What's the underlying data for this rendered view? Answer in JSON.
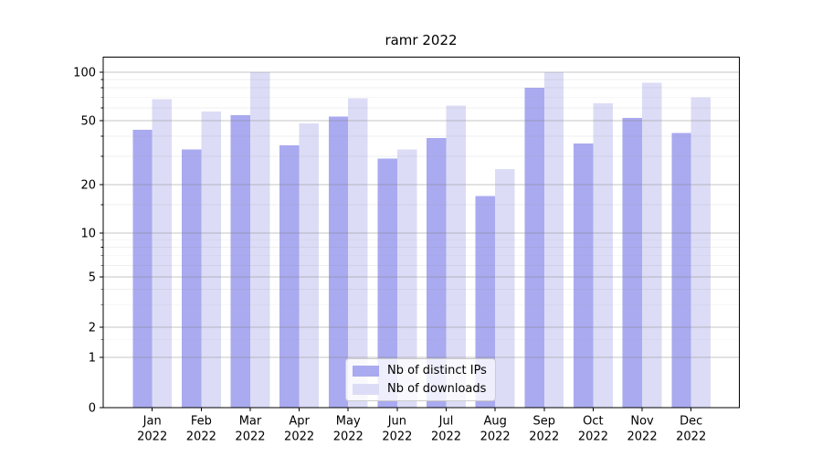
{
  "chart_data": {
    "type": "bar",
    "title": "ramr 2022",
    "categories": [
      "Jan",
      "Feb",
      "Mar",
      "Apr",
      "May",
      "Jun",
      "Jul",
      "Aug",
      "Sep",
      "Oct",
      "Nov",
      "Dec"
    ],
    "x_tick_year": "2022",
    "series": [
      {
        "name": "Nb of distinct IPs",
        "color": "#aaaaf0",
        "values": [
          44,
          33,
          54,
          35,
          53,
          29,
          39,
          17,
          80,
          36,
          52,
          42
        ]
      },
      {
        "name": "Nb of downloads",
        "color": "#dcdcf6",
        "values": [
          68,
          57,
          100,
          48,
          69,
          33,
          62,
          25,
          100,
          64,
          86,
          70
        ]
      }
    ],
    "y_axis": {
      "scale": "symlog",
      "ticks": [
        0,
        1,
        2,
        5,
        10,
        20,
        50,
        100
      ],
      "minor_ticks": [
        1.5,
        3,
        4,
        6,
        7,
        8,
        9,
        15,
        30,
        40,
        60,
        70,
        80,
        90
      ],
      "range": [
        0,
        120
      ]
    },
    "legend": {
      "position": "lower center"
    },
    "grid": true
  }
}
